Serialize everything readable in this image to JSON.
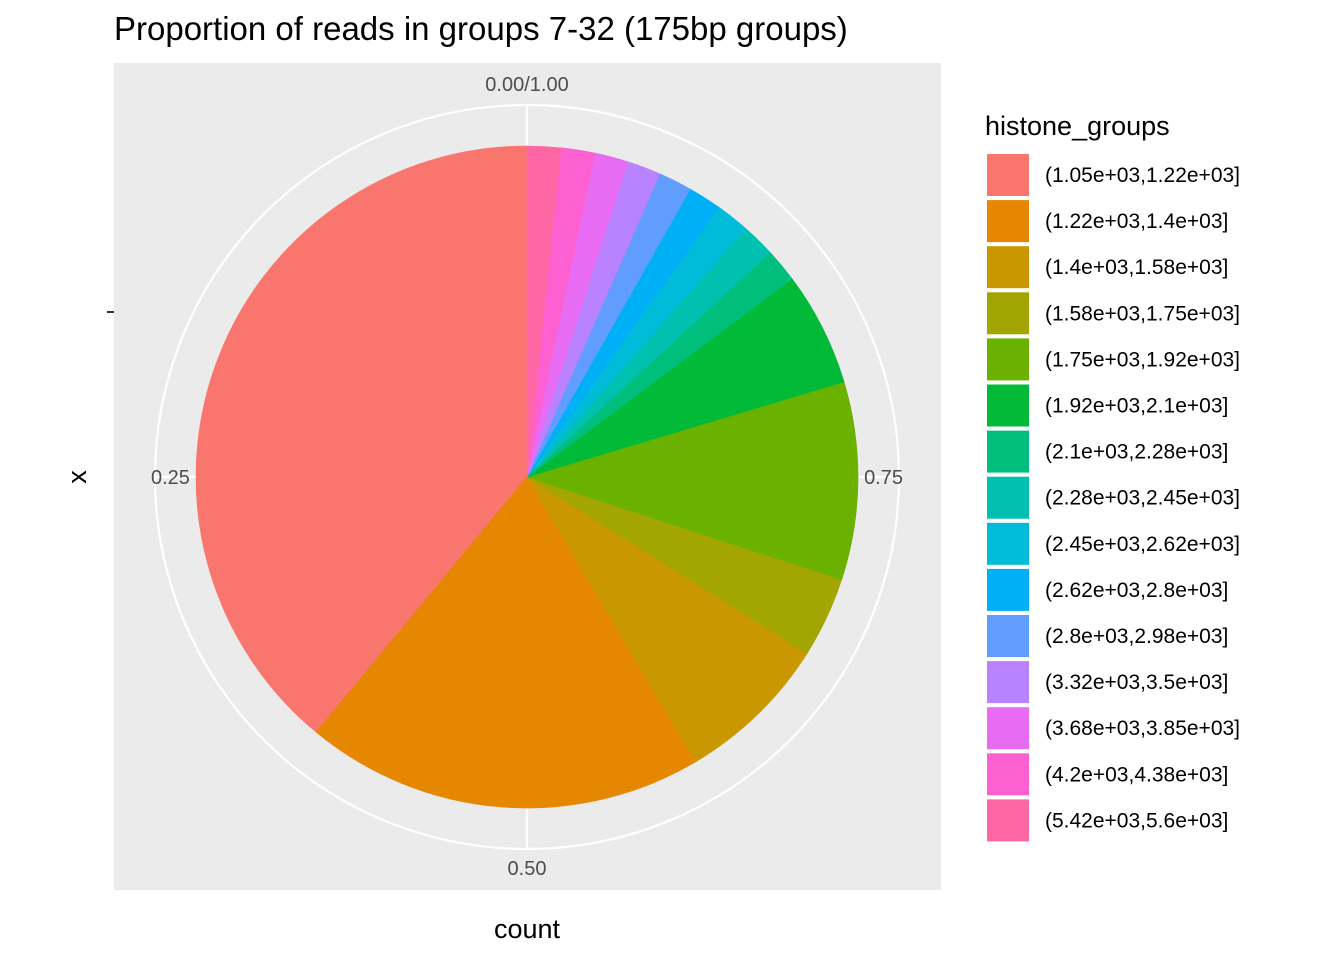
{
  "chart_data": {
    "type": "pie",
    "title": "Proportion of reads in groups 7-32 (175bp groups)",
    "xlabel": "count",
    "ylabel": "x",
    "angular_ticks": [
      {
        "value": 0.0,
        "label": "0.00/1.00"
      },
      {
        "value": 0.25,
        "label": "0.25"
      },
      {
        "value": 0.5,
        "label": "0.50"
      },
      {
        "value": 0.75,
        "label": "0.75"
      }
    ],
    "legend_title": "histone_groups",
    "legend_position": "right",
    "start_at": "top",
    "direction": "counterclockwise",
    "categories": [
      "(1.05e+03,1.22e+03]",
      "(1.22e+03,1.4e+03]",
      "(1.4e+03,1.58e+03]",
      "(1.58e+03,1.75e+03]",
      "(1.75e+03,1.92e+03]",
      "(1.92e+03,2.1e+03]",
      "(2.1e+03,2.28e+03]",
      "(2.28e+03,2.45e+03]",
      "(2.45e+03,2.62e+03]",
      "(2.62e+03,2.8e+03]",
      "(2.8e+03,2.98e+03]",
      "(3.32e+03,3.5e+03]",
      "(3.68e+03,3.85e+03]",
      "(4.2e+03,4.38e+03]",
      "(5.42e+03,5.6e+03]"
    ],
    "values": [
      0.3967,
      0.1983,
      0.0767,
      0.04,
      0.0983,
      0.0567,
      0.0167,
      0.0167,
      0.0167,
      0.0167,
      0.0167,
      0.0167,
      0.0167,
      0.0167,
      0.0167
    ],
    "colors": [
      "#F8766D",
      "#E58700",
      "#C99800",
      "#A3A500",
      "#6BB100",
      "#00BA38",
      "#00BF7D",
      "#00C0AF",
      "#00BCD8",
      "#00B0F6",
      "#619CFF",
      "#B983FF",
      "#E76BF3",
      "#FD61D1",
      "#FF67A4"
    ]
  }
}
